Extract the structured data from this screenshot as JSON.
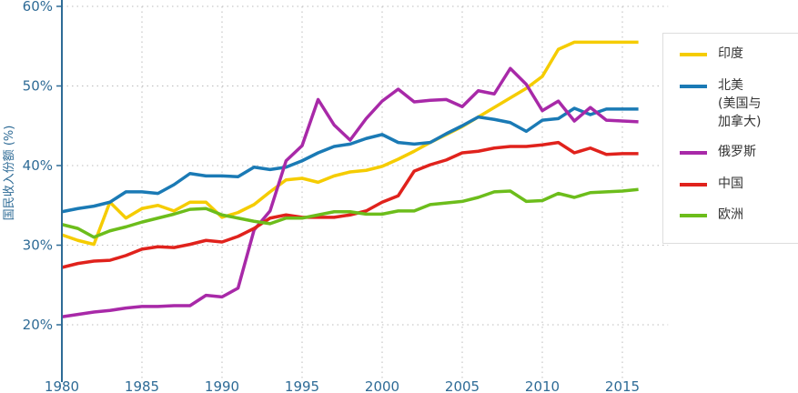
{
  "chart_data": {
    "type": "line",
    "title": "",
    "xlabel": "",
    "ylabel": "国民收入份额 (%)",
    "xlim": [
      1980,
      2017
    ],
    "ylim": [
      20,
      60
    ],
    "xticks": [
      1980,
      1985,
      1990,
      1995,
      2000,
      2005,
      2010,
      2015
    ],
    "xtick_labels": [
      "1980",
      "1985",
      "1990",
      "1995",
      "2000",
      "2005",
      "2010",
      "2015"
    ],
    "yticks": [
      20,
      30,
      40,
      50,
      60
    ],
    "ytick_labels": [
      "20%",
      "30%",
      "40%",
      "50%",
      "60%"
    ],
    "grid": true,
    "legend_placement": "right",
    "x": [
      1980,
      1981,
      1982,
      1983,
      1984,
      1985,
      1986,
      1987,
      1988,
      1989,
      1990,
      1991,
      1992,
      1993,
      1994,
      1995,
      1996,
      1997,
      1998,
      1999,
      2000,
      2001,
      2002,
      2003,
      2004,
      2005,
      2006,
      2007,
      2008,
      2009,
      2010,
      2011,
      2012,
      2013,
      2014,
      2015,
      2016
    ],
    "series": [
      {
        "name": "印度",
        "color": "#f5cc00",
        "values": [
          31.3,
          30.6,
          30.1,
          35.4,
          33.4,
          34.6,
          35.0,
          34.3,
          35.4,
          35.4,
          33.5,
          34.1,
          35.1,
          36.7,
          38.2,
          38.4,
          37.9,
          38.7,
          39.2,
          39.4,
          39.9,
          40.8,
          41.8,
          42.9,
          43.9,
          44.9,
          46.1,
          47.3,
          48.5,
          49.7,
          51.2,
          54.6,
          55.5,
          55.5,
          55.5,
          55.5,
          55.5
        ]
      },
      {
        "name": "北美\n(美国与\n加拿大)",
        "color": "#1a7ab5",
        "values": [
          34.2,
          34.6,
          34.9,
          35.4,
          36.7,
          36.7,
          36.5,
          37.6,
          39.0,
          38.7,
          38.7,
          38.6,
          39.8,
          39.5,
          39.8,
          40.6,
          41.6,
          42.4,
          42.7,
          43.4,
          43.9,
          42.9,
          42.7,
          42.9,
          44.0,
          45.0,
          46.1,
          45.8,
          45.4,
          44.3,
          45.7,
          45.9,
          47.2,
          46.4,
          47.1,
          47.1,
          47.1
        ]
      },
      {
        "name": "俄罗斯",
        "color": "#a829a8",
        "values": [
          21.0,
          21.3,
          21.6,
          21.8,
          22.1,
          22.3,
          22.3,
          22.4,
          22.4,
          23.7,
          23.5,
          24.6,
          31.9,
          34.3,
          40.6,
          42.5,
          48.3,
          45.1,
          43.2,
          45.9,
          48.1,
          49.6,
          48.0,
          48.2,
          48.3,
          47.4,
          49.4,
          49.0,
          52.2,
          50.2,
          46.9,
          48.1,
          45.6,
          47.3,
          45.7,
          45.6,
          45.5
        ]
      },
      {
        "name": "中国",
        "color": "#e0221c",
        "values": [
          27.2,
          27.7,
          28.0,
          28.1,
          28.7,
          29.5,
          29.8,
          29.7,
          30.1,
          30.6,
          30.4,
          31.1,
          32.1,
          33.4,
          33.8,
          33.5,
          33.5,
          33.5,
          33.8,
          34.3,
          35.4,
          36.2,
          39.3,
          40.1,
          40.7,
          41.6,
          41.8,
          42.2,
          42.4,
          42.4,
          42.6,
          42.9,
          41.6,
          42.2,
          41.4,
          41.5,
          41.5
        ]
      },
      {
        "name": "欧洲",
        "color": "#6cbd1b",
        "values": [
          32.6,
          32.1,
          31.0,
          31.8,
          32.3,
          32.9,
          33.4,
          33.9,
          34.5,
          34.6,
          33.8,
          33.4,
          33.0,
          32.7,
          33.4,
          33.4,
          33.8,
          34.2,
          34.2,
          33.9,
          33.9,
          34.3,
          34.3,
          35.1,
          35.3,
          35.5,
          36.0,
          36.7,
          36.8,
          35.5,
          35.6,
          36.5,
          36.0,
          36.6,
          36.7,
          36.8,
          37.0
        ]
      }
    ]
  }
}
